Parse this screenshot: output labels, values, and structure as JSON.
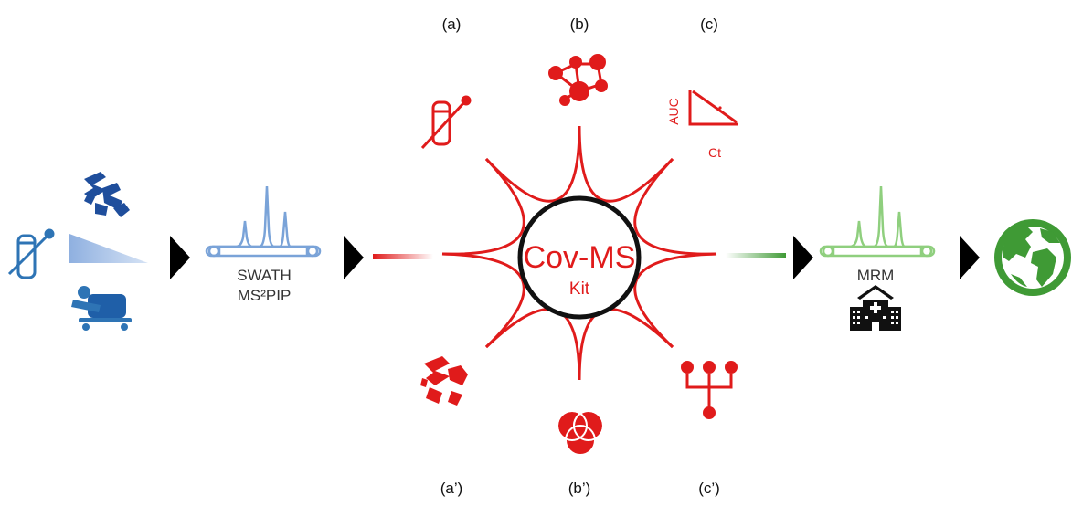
{
  "colors": {
    "red": "#e01b1b",
    "blue_dark": "#1f4e9c",
    "blue_mid": "#2e74b5",
    "blue_light": "#a9c1e4",
    "blue_spectrum": "#7aa3d8",
    "green": "#3f9a35",
    "green_light": "#8fcf7e",
    "black": "#000000",
    "gray": "#333333"
  },
  "labels": {
    "a": "(a)",
    "b": "(b)",
    "c": "(c)",
    "a_prime": "(a’)",
    "b_prime": "(b’)",
    "c_prime": "(c’)"
  },
  "center": {
    "title": "Cov-MS",
    "subtitle": "Kit"
  },
  "left": {
    "method_line1": "SWATH",
    "method_line2": "MS²PIP"
  },
  "right": {
    "method": "MRM"
  },
  "chart_icon": {
    "y_label": "AUC",
    "x_label": "Ct"
  },
  "icons": [
    "test-tube-swab-icon",
    "protein-structure-icon",
    "gradient-wedge-icon",
    "patient-bed-icon",
    "swath-spectrum-icon",
    "network-people-icon",
    "auc-ct-chart-icon",
    "protein-fragment-icon",
    "venn-circles-icon",
    "hierarchy-icon",
    "mrm-spectrum-icon",
    "hospital-icon",
    "globe-icon"
  ]
}
